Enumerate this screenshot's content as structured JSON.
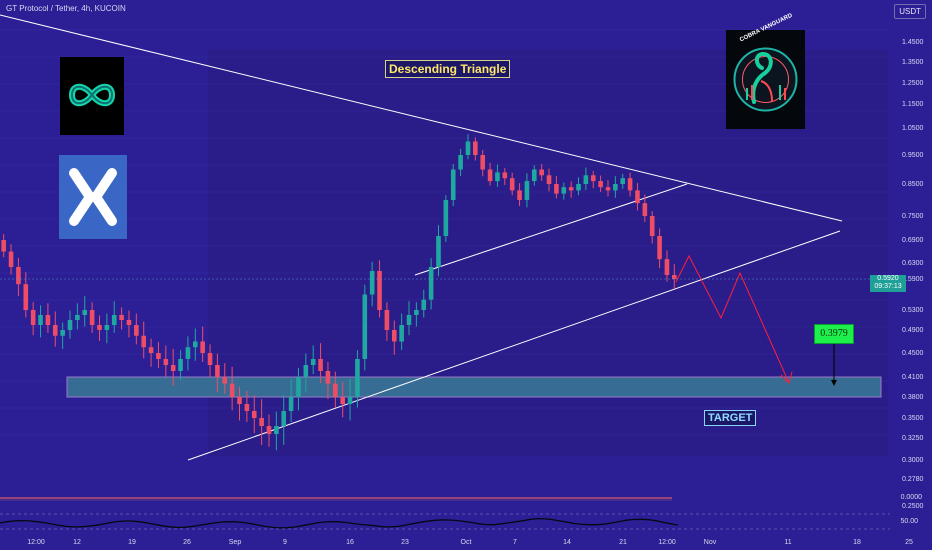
{
  "header": {
    "symbol": "GT Protocol / Tether, 4h, KUCOIN",
    "currency": "USDT"
  },
  "annotations": {
    "title": "Descending Triangle",
    "target": "TARGET",
    "target_price": "0.3979",
    "current_price": "0.5920",
    "countdown": "09:37:13"
  },
  "chart_data": {
    "type": "line",
    "title": "Descending Triangle",
    "xlabel": "",
    "ylabel": "",
    "x_ticks": [
      "12:00",
      "12",
      "19",
      "26",
      "Sep",
      "9",
      "16",
      "23",
      "Oct",
      "7",
      "14",
      "21",
      "12:00",
      "Nov",
      "11",
      "18",
      "25"
    ],
    "y_ticks": [
      1.45,
      1.35,
      1.25,
      1.15,
      1.05,
      0.95,
      0.85,
      0.75,
      0.69,
      0.63,
      0.59,
      0.53,
      0.49,
      0.45,
      0.41,
      0.38,
      0.35,
      0.325,
      0.3,
      0.278,
      0.25
    ],
    "ylim": [
      0.25,
      1.45
    ],
    "series": [
      {
        "values": [
          0.69,
          0.66,
          0.62,
          0.58,
          0.53,
          0.5,
          0.52,
          0.5,
          0.48,
          0.49,
          0.51,
          0.52,
          0.53,
          0.5,
          0.49,
          0.5,
          0.52,
          0.51,
          0.5,
          0.48,
          0.46,
          0.45,
          0.44,
          0.43,
          0.42,
          0.44,
          0.46,
          0.47,
          0.45,
          0.43,
          0.41,
          0.4,
          0.38,
          0.37,
          0.36,
          0.35,
          0.34,
          0.33,
          0.34,
          0.36,
          0.38,
          0.41,
          0.43,
          0.44,
          0.42,
          0.4,
          0.38,
          0.37,
          0.38,
          0.44,
          0.56,
          0.61,
          0.53,
          0.49,
          0.47,
          0.5,
          0.52,
          0.53,
          0.55,
          0.62,
          0.7,
          0.8,
          0.9,
          0.95,
          1.0,
          0.95,
          0.9,
          0.86,
          0.89,
          0.87,
          0.83,
          0.8,
          0.86,
          0.9,
          0.88,
          0.85,
          0.82,
          0.84,
          0.83,
          0.85,
          0.88,
          0.86,
          0.84,
          0.83,
          0.85,
          0.87,
          0.83,
          0.79,
          0.75,
          0.7,
          0.64,
          0.6,
          0.59
        ]
      }
    ],
    "horizontal_zone": [
      0.38,
      0.41
    ],
    "indicator_reference": "0.0000",
    "oscillator_reference": "50.00"
  },
  "colors": {
    "background": "#2c1f96",
    "candle_up": "#1fa89f",
    "candle_down": "#ef4c66",
    "line_white": "#ffffff",
    "projection": "#ff1e3c",
    "target_zone": "#376d95"
  },
  "icons": {
    "logo_left_top": "infinity-logo-icon",
    "logo_left_bottom": "x-logo-icon",
    "logo_right": "cobra-vanguard-logo-icon",
    "logo_right_text": "COBRA VANGUARD"
  }
}
